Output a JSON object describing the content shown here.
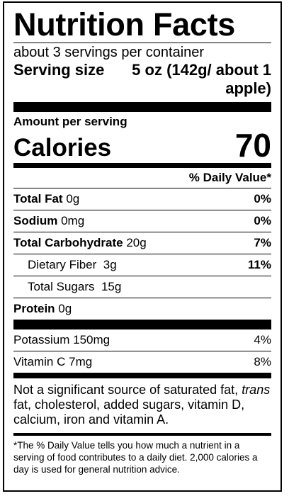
{
  "title": "Nutrition Facts",
  "servings_per_container": "about 3 servings per container",
  "serving_size": {
    "label": "Serving size",
    "value": "5 oz (142g/ about 1 apple)"
  },
  "amount_per_serving": "Amount per serving",
  "calories": {
    "label": "Calories",
    "value": "70"
  },
  "daily_value_header": "% Daily Value*",
  "nutrients": [
    {
      "name": "Total Fat",
      "amount": "0g",
      "dv": "0%"
    },
    {
      "name": "Sodium",
      "amount": "0mg",
      "dv": "0%"
    },
    {
      "name": "Total Carbohydrate",
      "amount": "20g",
      "dv": "7%"
    },
    {
      "name": "Dietary Fiber",
      "amount": "3g",
      "dv": "11%"
    },
    {
      "name": "Total Sugars",
      "amount": "15g",
      "dv": ""
    },
    {
      "name": "Protein",
      "amount": "0g",
      "dv": ""
    }
  ],
  "vitamins": [
    {
      "name": "Potassium",
      "amount": "150mg",
      "dv": "4%"
    },
    {
      "name": "Vitamin C",
      "amount": "7mg",
      "dv": "8%"
    }
  ],
  "not_significant": {
    "prefix": "Not a significant source of saturated fat,",
    "trans": "trans",
    "suffix": "fat, cholesterol, added sugars, vitamin D, calcium, iron and vitamin A."
  },
  "footnote": "*The % Daily Value tells you how much a nutrient in a serving of food contributes to a daily diet. 2,000 calories a day is used for general nutrition advice."
}
